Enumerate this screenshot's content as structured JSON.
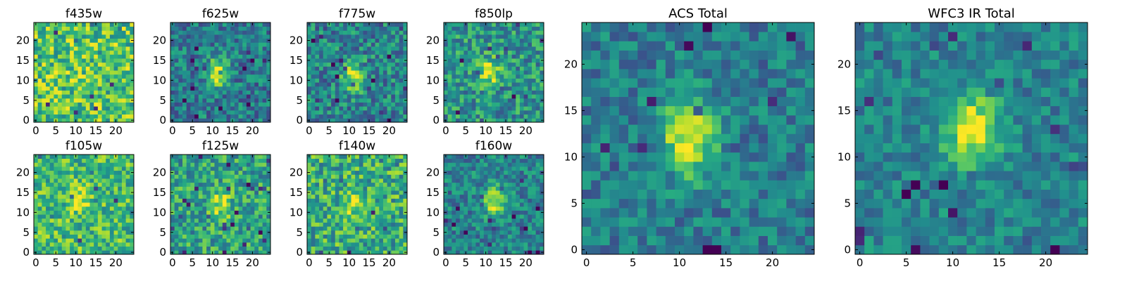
{
  "figure": {
    "background": "#ffffff",
    "colormap": "viridis"
  },
  "chart_data": [
    {
      "type": "heatmap",
      "title": "f435w",
      "grid_size": 25,
      "xlim": [
        -0.5,
        24.5
      ],
      "ylim": [
        -0.5,
        24.5
      ],
      "xticks": [
        "0",
        "5",
        "10",
        "15",
        "20"
      ],
      "yticks": [
        "0",
        "5",
        "10",
        "15",
        "20"
      ],
      "grid": false,
      "source_peak": [
        11,
        11
      ],
      "source_strength": 0.05,
      "background_level": 0.72,
      "noise_level": 0.35,
      "seed": 11
    },
    {
      "type": "heatmap",
      "title": "f625w",
      "grid_size": 25,
      "xlim": [
        -0.5,
        24.5
      ],
      "ylim": [
        -0.5,
        24.5
      ],
      "xticks": [
        "0",
        "5",
        "10",
        "15",
        "20"
      ],
      "yticks": [
        "0",
        "5",
        "10",
        "15",
        "20"
      ],
      "grid": false,
      "source_peak": [
        11,
        12
      ],
      "source_strength": 0.55,
      "background_level": 0.42,
      "noise_level": 0.28,
      "seed": 23
    },
    {
      "type": "heatmap",
      "title": "f775w",
      "grid_size": 25,
      "xlim": [
        -0.5,
        24.5
      ],
      "ylim": [
        -0.5,
        24.5
      ],
      "xticks": [
        "0",
        "5",
        "10",
        "15",
        "20"
      ],
      "yticks": [
        "0",
        "5",
        "10",
        "15",
        "20"
      ],
      "grid": false,
      "source_peak": [
        11,
        11
      ],
      "source_strength": 0.5,
      "background_level": 0.45,
      "noise_level": 0.3,
      "seed": 37
    },
    {
      "type": "heatmap",
      "title": "f850lp",
      "grid_size": 25,
      "xlim": [
        -0.5,
        24.5
      ],
      "ylim": [
        -0.5,
        24.5
      ],
      "xticks": [
        "0",
        "5",
        "10",
        "15",
        "20"
      ],
      "yticks": [
        "0",
        "5",
        "10",
        "15",
        "20"
      ],
      "grid": false,
      "source_peak": [
        11,
        12
      ],
      "source_strength": 0.4,
      "background_level": 0.52,
      "noise_level": 0.3,
      "seed": 41
    },
    {
      "type": "heatmap",
      "title": "f105w",
      "grid_size": 25,
      "xlim": [
        -0.5,
        24.5
      ],
      "ylim": [
        -0.5,
        24.5
      ],
      "xticks": [
        "0",
        "5",
        "10",
        "15",
        "20"
      ],
      "yticks": [
        "0",
        "5",
        "10",
        "15",
        "20"
      ],
      "grid": false,
      "source_peak": [
        11,
        13
      ],
      "source_strength": 0.25,
      "background_level": 0.68,
      "noise_level": 0.3,
      "seed": 53
    },
    {
      "type": "heatmap",
      "title": "f125w",
      "grid_size": 25,
      "xlim": [
        -0.5,
        24.5
      ],
      "ylim": [
        -0.5,
        24.5
      ],
      "xticks": [
        "0",
        "5",
        "10",
        "15",
        "20"
      ],
      "yticks": [
        "0",
        "5",
        "10",
        "15",
        "20"
      ],
      "grid": false,
      "source_peak": [
        12,
        12
      ],
      "source_strength": 0.35,
      "background_level": 0.58,
      "noise_level": 0.3,
      "seed": 67
    },
    {
      "type": "heatmap",
      "title": "f140w",
      "grid_size": 25,
      "xlim": [
        -0.5,
        24.5
      ],
      "ylim": [
        -0.5,
        24.5
      ],
      "xticks": [
        "0",
        "5",
        "10",
        "15",
        "20"
      ],
      "yticks": [
        "0",
        "5",
        "10",
        "15",
        "20"
      ],
      "grid": false,
      "source_peak": [
        11,
        12
      ],
      "source_strength": 0.3,
      "background_level": 0.62,
      "noise_level": 0.33,
      "seed": 79
    },
    {
      "type": "heatmap",
      "title": "f160w",
      "grid_size": 25,
      "xlim": [
        -0.5,
        24.5
      ],
      "ylim": [
        -0.5,
        24.5
      ],
      "xticks": [
        "0",
        "5",
        "10",
        "15",
        "20"
      ],
      "yticks": [
        "0",
        "5",
        "10",
        "15",
        "20"
      ],
      "grid": false,
      "source_peak": [
        12,
        13
      ],
      "source_strength": 0.5,
      "background_level": 0.45,
      "noise_level": 0.25,
      "seed": 83
    },
    {
      "type": "heatmap",
      "title": "ACS Total",
      "grid_size": 25,
      "xlim": [
        -0.5,
        24.5
      ],
      "ylim": [
        -0.5,
        24.5
      ],
      "xticks": [
        "0",
        "5",
        "10",
        "15",
        "20"
      ],
      "yticks": [
        "0",
        "5",
        "10",
        "15",
        "20"
      ],
      "grid": false,
      "source_peak": [
        11,
        12
      ],
      "source_strength": 0.6,
      "background_level": 0.42,
      "noise_level": 0.22,
      "seed": 97
    },
    {
      "type": "heatmap",
      "title": "WFC3 IR Total",
      "grid_size": 25,
      "xlim": [
        -0.5,
        24.5
      ],
      "ylim": [
        -0.5,
        24.5
      ],
      "xticks": [
        "0",
        "5",
        "10",
        "15",
        "20"
      ],
      "yticks": [
        "0",
        "5",
        "10",
        "15",
        "20"
      ],
      "grid": false,
      "source_peak": [
        12,
        13
      ],
      "source_strength": 0.55,
      "background_level": 0.45,
      "noise_level": 0.2,
      "seed": 101
    }
  ]
}
